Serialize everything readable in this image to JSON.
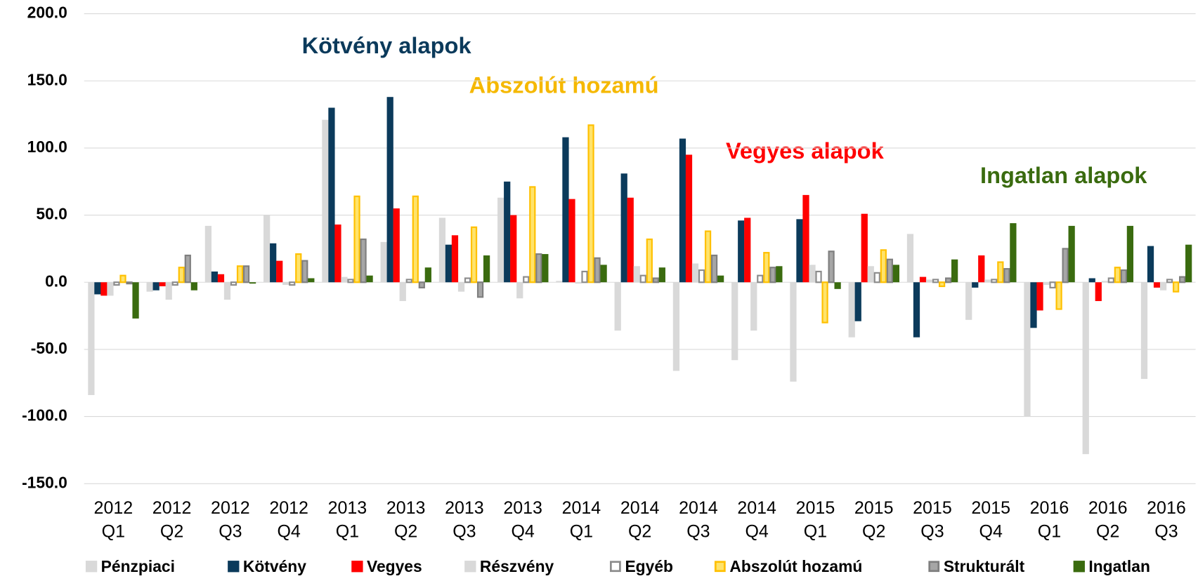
{
  "chart_data": {
    "type": "bar",
    "categories": [
      [
        "2012",
        "Q1"
      ],
      [
        "2012",
        "Q2"
      ],
      [
        "2012",
        "Q3"
      ],
      [
        "2012",
        "Q4"
      ],
      [
        "2013",
        "Q1"
      ],
      [
        "2013",
        "Q2"
      ],
      [
        "2013",
        "Q3"
      ],
      [
        "2013",
        "Q4"
      ],
      [
        "2014",
        "Q1"
      ],
      [
        "2014",
        "Q2"
      ],
      [
        "2014",
        "Q3"
      ],
      [
        "2014",
        "Q4"
      ],
      [
        "2015",
        "Q1"
      ],
      [
        "2015",
        "Q2"
      ],
      [
        "2015",
        "Q3"
      ],
      [
        "2015",
        "Q4"
      ],
      [
        "2016",
        "Q1"
      ],
      [
        "2016",
        "Q2"
      ],
      [
        "2016",
        "Q3"
      ]
    ],
    "series": [
      {
        "name": "Pénzpiaci",
        "color": "#d9d9d9",
        "values": [
          -84,
          -7,
          42,
          50,
          121,
          30,
          48,
          63,
          1,
          -36,
          -66,
          -58,
          -74,
          -41,
          36,
          -28,
          -100,
          -128,
          -72
        ]
      },
      {
        "name": "Kötvény",
        "color": "#0b3a5b",
        "values": [
          -9,
          -6,
          8,
          29,
          130,
          138,
          28,
          75,
          108,
          81,
          107,
          46,
          47,
          -29,
          -41,
          -4,
          -34,
          3,
          27
        ]
      },
      {
        "name": "Vegyes",
        "color": "#ff0000",
        "values": [
          -10,
          -3,
          6,
          16,
          43,
          55,
          35,
          50,
          62,
          63,
          95,
          48,
          65,
          51,
          4,
          20,
          -21,
          -14,
          -4
        ]
      },
      {
        "name": "Részvény",
        "color": "#d9d9d9",
        "values": [
          -10,
          -13,
          -13,
          -2,
          4,
          -14,
          -7,
          -12,
          -1,
          12,
          14,
          -36,
          13,
          12,
          2,
          2,
          -2,
          1,
          -6
        ]
      },
      {
        "name": "Egyéb",
        "color": "#ffffff",
        "stroke": "#8c8c8c",
        "values": [
          -2,
          -2,
          -2,
          -2,
          2,
          2,
          3,
          4,
          8,
          5,
          9,
          5,
          8,
          7,
          2,
          2,
          -4,
          3,
          2
        ]
      },
      {
        "name": "Abszolút hozamú",
        "color": "#ffe36b",
        "stroke": "#ffc000",
        "values": [
          5,
          11,
          12,
          21,
          64,
          64,
          41,
          71,
          117,
          32,
          38,
          22,
          -30,
          24,
          -3,
          15,
          -20,
          11,
          -7
        ]
      },
      {
        "name": "Strukturált",
        "color": "#a6a6a6",
        "stroke": "#7f7f7f",
        "values": [
          -1,
          20,
          12,
          16,
          32,
          -4,
          -11,
          21,
          18,
          3,
          20,
          11,
          23,
          17,
          3,
          10,
          25,
          9,
          4
        ]
      },
      {
        "name": "Ingatlan",
        "color": "#3a6b0f",
        "values": [
          -27,
          -6,
          -1,
          3,
          5,
          11,
          20,
          21,
          13,
          11,
          5,
          12,
          -5,
          13,
          17,
          44,
          42,
          42,
          28
        ]
      }
    ],
    "annotations": [
      {
        "text": "Kötvény alapok",
        "color": "#0b3a5b"
      },
      {
        "text": "Abszolút hozamú",
        "color": "#f5b800"
      },
      {
        "text": "Vegyes alapok",
        "color": "#ff0000"
      },
      {
        "text": "Ingatlan alapok",
        "color": "#3a6b0f"
      }
    ],
    "ylim": [
      -150,
      200
    ],
    "yticks": [
      {
        "value": -150,
        "label": "-150.0"
      },
      {
        "value": -100,
        "label": "-100.0"
      },
      {
        "value": -50,
        "label": "-50.0"
      },
      {
        "value": 0,
        "label": "0.0"
      },
      {
        "value": 50,
        "label": "50.0"
      },
      {
        "value": 100,
        "label": "100.0"
      },
      {
        "value": 150,
        "label": "150.0"
      },
      {
        "value": 200,
        "label": "200.0"
      }
    ],
    "grid": true,
    "legend": "bottom"
  }
}
